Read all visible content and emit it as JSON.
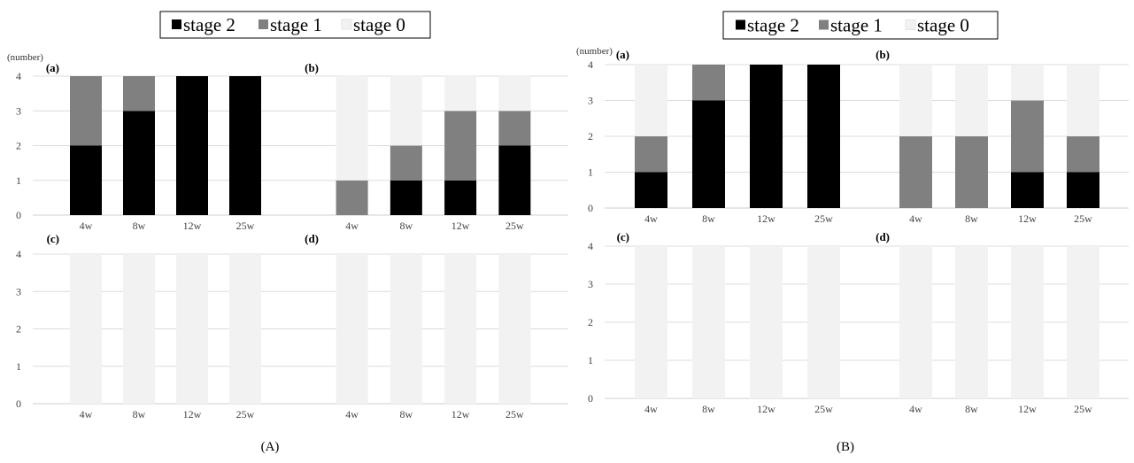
{
  "figures": [
    {
      "label": "(A)",
      "y_unit_label": "(number)",
      "legend": [
        {
          "name": "stage 2",
          "color": "#000000"
        },
        {
          "name": "stage 1",
          "color": "#808080"
        },
        {
          "name": "stage 0",
          "color": "#f2f2f2"
        }
      ]
    },
    {
      "label": "(B)",
      "y_unit_label": "(number)",
      "legend": [
        {
          "name": "stage 2",
          "color": "#000000"
        },
        {
          "name": "stage 1",
          "color": "#808080"
        },
        {
          "name": "stage 0",
          "color": "#f2f2f2"
        }
      ]
    }
  ],
  "chart_data": [
    {
      "figure": "(A)",
      "panel": "(a)",
      "type": "bar",
      "stacked": true,
      "categories": [
        "4w",
        "8w",
        "12w",
        "25w"
      ],
      "ylim": [
        0,
        4
      ],
      "yticks": [
        0,
        1,
        2,
        3,
        4
      ],
      "grid": true,
      "series": [
        {
          "name": "stage 2",
          "values": [
            2,
            3,
            4,
            4
          ]
        },
        {
          "name": "stage 1",
          "values": [
            2,
            1,
            0,
            0
          ]
        },
        {
          "name": "stage 0",
          "values": [
            0,
            0,
            0,
            0
          ]
        }
      ]
    },
    {
      "figure": "(A)",
      "panel": "(b)",
      "type": "bar",
      "stacked": true,
      "categories": [
        "4w",
        "8w",
        "12w",
        "25w"
      ],
      "ylim": [
        0,
        4
      ],
      "yticks": [
        0,
        1,
        2,
        3,
        4
      ],
      "grid": true,
      "series": [
        {
          "name": "stage 2",
          "values": [
            0,
            1,
            1,
            2
          ]
        },
        {
          "name": "stage 1",
          "values": [
            1,
            1,
            2,
            1
          ]
        },
        {
          "name": "stage 0",
          "values": [
            3,
            2,
            1,
            1
          ]
        }
      ]
    },
    {
      "figure": "(A)",
      "panel": "(c)",
      "type": "bar",
      "stacked": true,
      "categories": [
        "4w",
        "8w",
        "12w",
        "25w"
      ],
      "ylim": [
        0,
        4
      ],
      "yticks": [
        0,
        1,
        2,
        3,
        4
      ],
      "grid": true,
      "series": [
        {
          "name": "stage 2",
          "values": [
            0,
            0,
            0,
            0
          ]
        },
        {
          "name": "stage 1",
          "values": [
            0,
            0,
            0,
            0
          ]
        },
        {
          "name": "stage 0",
          "values": [
            4,
            4,
            4,
            4
          ]
        }
      ]
    },
    {
      "figure": "(A)",
      "panel": "(d)",
      "type": "bar",
      "stacked": true,
      "categories": [
        "4w",
        "8w",
        "12w",
        "25w"
      ],
      "ylim": [
        0,
        4
      ],
      "yticks": [
        0,
        1,
        2,
        3,
        4
      ],
      "grid": true,
      "series": [
        {
          "name": "stage 2",
          "values": [
            0,
            0,
            0,
            0
          ]
        },
        {
          "name": "stage 1",
          "values": [
            0,
            0,
            0,
            0
          ]
        },
        {
          "name": "stage 0",
          "values": [
            4,
            4,
            4,
            4
          ]
        }
      ]
    },
    {
      "figure": "(B)",
      "panel": "(a)",
      "type": "bar",
      "stacked": true,
      "categories": [
        "4w",
        "8w",
        "12w",
        "25w"
      ],
      "ylim": [
        0,
        4
      ],
      "yticks": [
        0,
        1,
        2,
        3,
        4
      ],
      "grid": true,
      "series": [
        {
          "name": "stage 2",
          "values": [
            1,
            3,
            4,
            4
          ]
        },
        {
          "name": "stage 1",
          "values": [
            1,
            1,
            0,
            0
          ]
        },
        {
          "name": "stage 0",
          "values": [
            2,
            0,
            0,
            0
          ]
        }
      ]
    },
    {
      "figure": "(B)",
      "panel": "(b)",
      "type": "bar",
      "stacked": true,
      "categories": [
        "4w",
        "8w",
        "12w",
        "25w"
      ],
      "ylim": [
        0,
        4
      ],
      "yticks": [
        0,
        1,
        2,
        3,
        4
      ],
      "grid": true,
      "series": [
        {
          "name": "stage 2",
          "values": [
            0,
            0,
            1,
            1
          ]
        },
        {
          "name": "stage 1",
          "values": [
            2,
            2,
            2,
            1
          ]
        },
        {
          "name": "stage 0",
          "values": [
            2,
            2,
            1,
            2
          ]
        }
      ]
    },
    {
      "figure": "(B)",
      "panel": "(c)",
      "type": "bar",
      "stacked": true,
      "categories": [
        "4w",
        "8w",
        "12w",
        "25w"
      ],
      "ylim": [
        0,
        4
      ],
      "yticks": [
        0,
        1,
        2,
        3,
        4
      ],
      "grid": true,
      "series": [
        {
          "name": "stage 2",
          "values": [
            0,
            0,
            0,
            0
          ]
        },
        {
          "name": "stage 1",
          "values": [
            0,
            0,
            0,
            0
          ]
        },
        {
          "name": "stage 0",
          "values": [
            4,
            4,
            4,
            4
          ]
        }
      ]
    },
    {
      "figure": "(B)",
      "panel": "(d)",
      "type": "bar",
      "stacked": true,
      "categories": [
        "4w",
        "8w",
        "12w",
        "25w"
      ],
      "ylim": [
        0,
        4
      ],
      "yticks": [
        0,
        1,
        2,
        3,
        4
      ],
      "grid": true,
      "series": [
        {
          "name": "stage 2",
          "values": [
            0,
            0,
            0,
            0
          ]
        },
        {
          "name": "stage 1",
          "values": [
            0,
            0,
            0,
            0
          ]
        },
        {
          "name": "stage 0",
          "values": [
            4,
            4,
            4,
            4
          ]
        }
      ]
    }
  ]
}
